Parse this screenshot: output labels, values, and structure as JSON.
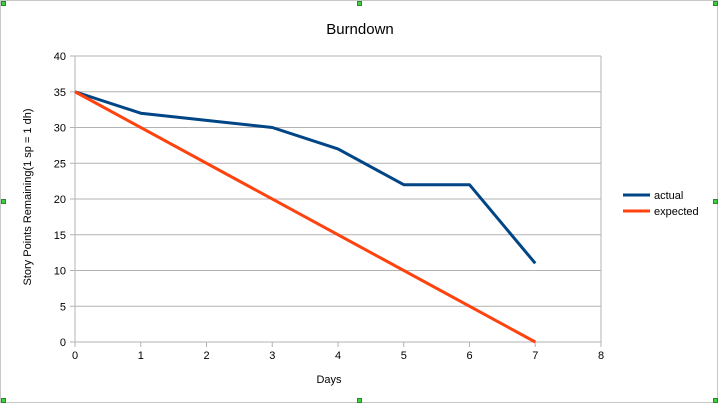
{
  "chart_data": {
    "type": "line",
    "title": "Burndown",
    "xlabel": "Days",
    "ylabel": "Story Points Remaining(1 sp = 1 dh)",
    "xlim": [
      0,
      8
    ],
    "ylim": [
      0,
      40
    ],
    "xticks": [
      0,
      1,
      2,
      3,
      4,
      5,
      6,
      7,
      8
    ],
    "yticks": [
      0,
      5,
      10,
      15,
      20,
      25,
      30,
      35,
      40
    ],
    "grid": true,
    "legend_position": "right",
    "series": [
      {
        "name": "actual",
        "color": "#004586",
        "x": [
          0,
          1,
          2,
          3,
          4,
          5,
          6,
          7
        ],
        "y": [
          35,
          32,
          31,
          30,
          27,
          22,
          22,
          11
        ]
      },
      {
        "name": "expected",
        "color": "#ff420e",
        "x": [
          0,
          7
        ],
        "y": [
          35,
          0
        ]
      }
    ]
  }
}
